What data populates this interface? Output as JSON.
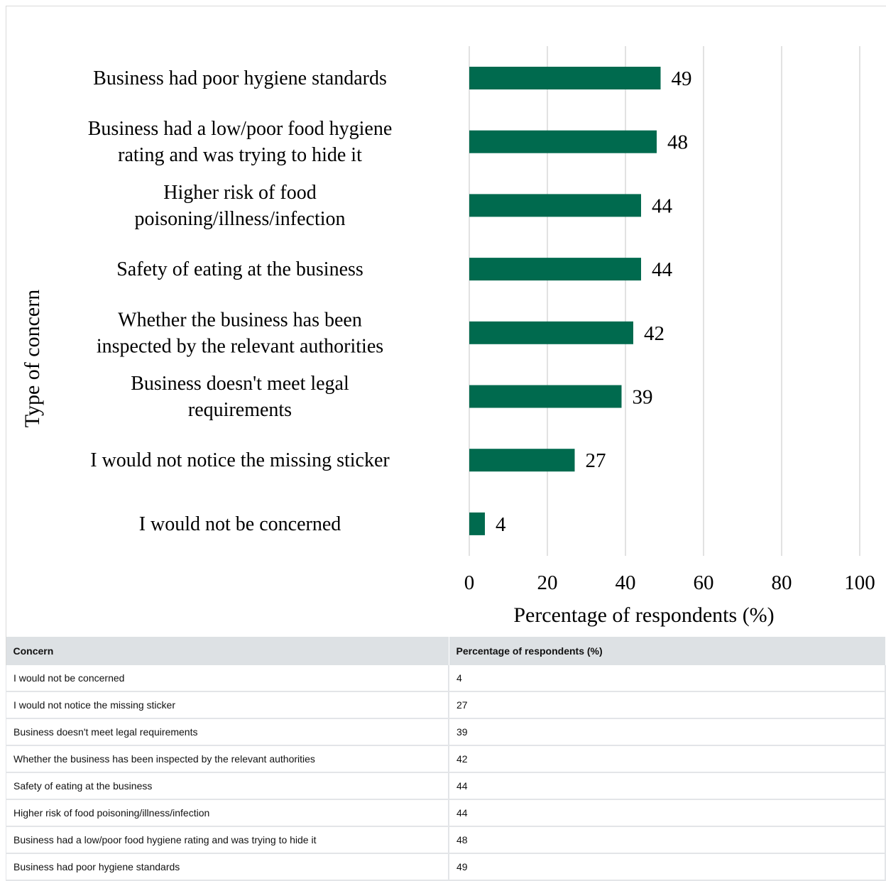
{
  "chart_data": {
    "type": "bar",
    "orientation": "horizontal",
    "title": "",
    "xlabel": "Percentage of respondents (%)",
    "ylabel": "Type of concern",
    "xlim": [
      0,
      100
    ],
    "xticks": [
      "0",
      "20",
      "40",
      "60",
      "80",
      "100"
    ],
    "grid": true,
    "bar_color": "#006a4e",
    "categories": [
      [
        "Business had poor hygiene standards"
      ],
      [
        "Business had a low/poor food hygiene",
        "rating and was trying to hide it"
      ],
      [
        "Higher risk of food",
        "poisoning/illness/infection"
      ],
      [
        "Safety of eating at the business"
      ],
      [
        "Whether the business has been",
        "inspected by the relevant authorities"
      ],
      [
        "Business doesn't meet legal",
        "requirements"
      ],
      [
        "I would not notice the missing sticker"
      ],
      [
        "I would not be concerned"
      ]
    ],
    "values": [
      49,
      48,
      44,
      44,
      42,
      39,
      27,
      4
    ]
  },
  "table": {
    "headers": [
      "Concern",
      "Percentage of respondents (%)"
    ],
    "rows": [
      [
        "I would not be concerned",
        "4"
      ],
      [
        "I would not notice the missing sticker",
        "27"
      ],
      [
        "Business doesn't meet legal requirements",
        "39"
      ],
      [
        "Whether the business has been inspected by the relevant authorities",
        "42"
      ],
      [
        "Safety of eating at the business",
        "44"
      ],
      [
        "Higher risk of food poisoning/illness/infection",
        "44"
      ],
      [
        "Business had a low/poor food hygiene rating and was trying to hide it",
        "48"
      ],
      [
        "Business had poor hygiene standards",
        "49"
      ]
    ]
  }
}
